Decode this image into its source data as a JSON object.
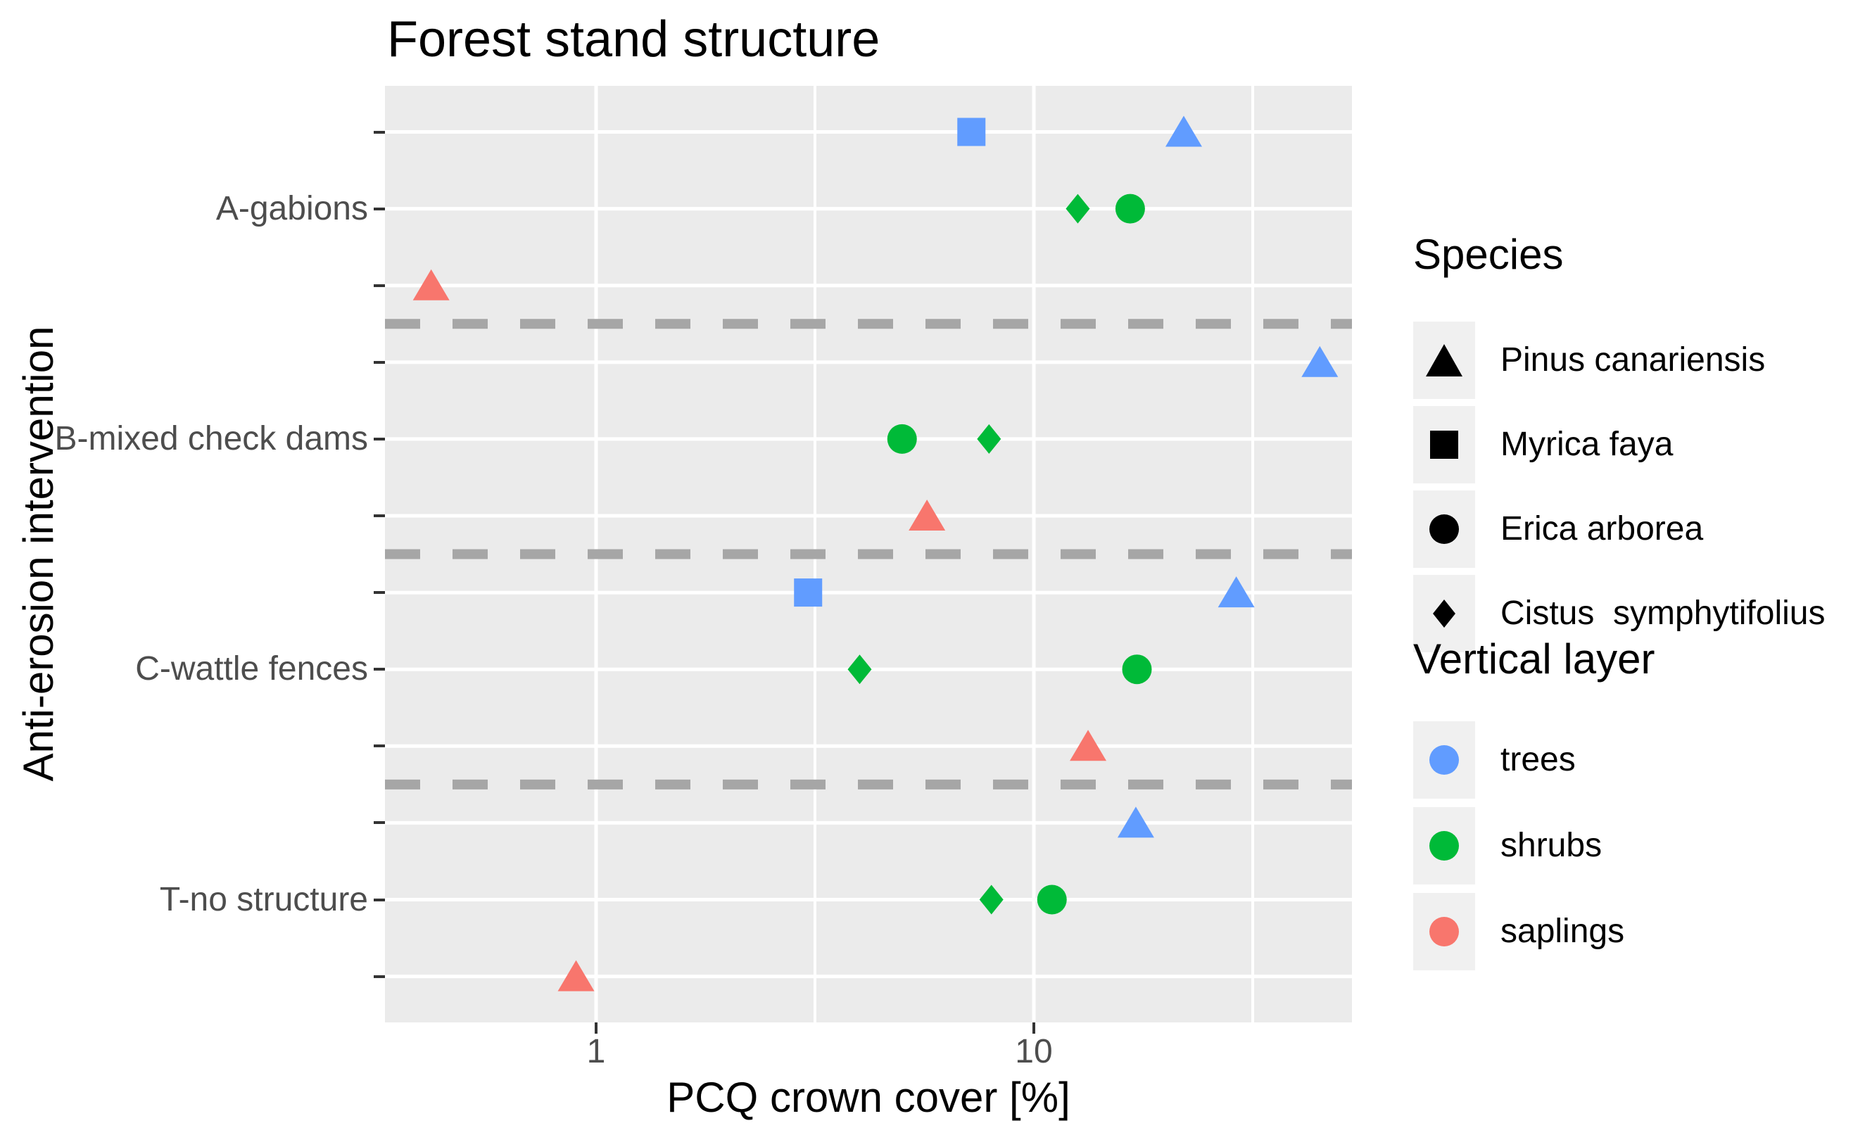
{
  "title": "Forest stand structure",
  "axes": {
    "x": {
      "label": "PCQ crown cover [%]",
      "scale": "log10",
      "ticks": [
        "1",
        "10"
      ],
      "tick_values": [
        1,
        10
      ]
    },
    "y": {
      "label": "Anti-erosion intervention",
      "ticks": [
        "A-gabions",
        "B-mixed check dams",
        "C-wattle fences",
        "T-no structure"
      ]
    }
  },
  "legend": {
    "species": {
      "title": "Species",
      "items": [
        {
          "label": "Pinus canariensis",
          "shape": "triangle"
        },
        {
          "label": "Myrica faya",
          "shape": "square"
        },
        {
          "label": "Erica arborea",
          "shape": "circle"
        },
        {
          "label": "Cistus  symphytifolius",
          "shape": "diamond"
        }
      ]
    },
    "vertical_layer": {
      "title": "Vertical layer",
      "items": [
        {
          "label": "trees",
          "color_key": "trees"
        },
        {
          "label": "shrubs",
          "color_key": "shrubs"
        },
        {
          "label": "saplings",
          "color_key": "saplings"
        }
      ]
    }
  },
  "colors": {
    "trees": "#619CFF",
    "shrubs": "#00BA38",
    "saplings": "#F8766D",
    "panel_background": "#EBEBEB",
    "gridline": "#FFFFFF",
    "separator_dash": "#A6A6A6",
    "tick_mark": "#333333",
    "tick_text": "#4D4D4D",
    "legend_key_background": "#F0F0F0"
  },
  "shape_by_species": {
    "Pinus canariensis": "triangle",
    "Myrica faya": "square",
    "Erica arborea": "circle",
    "Cistus symphytifolius": "diamond"
  },
  "chart_data": {
    "type": "scatter",
    "title": "Forest stand structure",
    "xlabel": "PCQ crown cover [%]",
    "ylabel": "Anti-erosion intervention",
    "x_scale": "log10",
    "x_ticks": [
      1,
      10
    ],
    "x_minor_gridlines": [
      3.1623,
      31.623
    ],
    "x_range_approx": [
      0.33,
      53
    ],
    "grid": true,
    "legend_position": "right",
    "groups": [
      {
        "intervention": "A-gabions",
        "rows": [
          {
            "layer": "trees",
            "points": [
              {
                "species": "Myrica faya",
                "value": 7.2
              },
              {
                "species": "Pinus canariensis",
                "value": 22
              }
            ]
          },
          {
            "layer": "shrubs",
            "points": [
              {
                "species": "Cistus symphytifolius",
                "value": 12.6
              },
              {
                "species": "Erica arborea",
                "value": 16.6
              }
            ]
          },
          {
            "layer": "saplings",
            "points": [
              {
                "species": "Pinus canariensis",
                "value": 0.42
              }
            ]
          }
        ]
      },
      {
        "intervention": "B-mixed check dams",
        "rows": [
          {
            "layer": "trees",
            "points": [
              {
                "species": "Pinus canariensis",
                "value": 45
              }
            ]
          },
          {
            "layer": "shrubs",
            "points": [
              {
                "species": "Erica arborea",
                "value": 5.0
              },
              {
                "species": "Cistus symphytifolius",
                "value": 7.9
              }
            ]
          },
          {
            "layer": "saplings",
            "points": [
              {
                "species": "Pinus canariensis",
                "value": 5.7
              }
            ]
          }
        ]
      },
      {
        "intervention": "C-wattle fences",
        "rows": [
          {
            "layer": "trees",
            "points": [
              {
                "species": "Myrica faya",
                "value": 3.05
              },
              {
                "species": "Pinus canariensis",
                "value": 29
              }
            ]
          },
          {
            "layer": "shrubs",
            "points": [
              {
                "species": "Cistus symphytifolius",
                "value": 4.0
              },
              {
                "species": "Erica arborea",
                "value": 17.2
              }
            ]
          },
          {
            "layer": "saplings",
            "points": [
              {
                "species": "Pinus canariensis",
                "value": 13.3
              }
            ]
          }
        ]
      },
      {
        "intervention": "T-no structure",
        "rows": [
          {
            "layer": "trees",
            "points": [
              {
                "species": "Pinus canariensis",
                "value": 17.1
              }
            ]
          },
          {
            "layer": "shrubs",
            "points": [
              {
                "species": "Cistus symphytifolius",
                "value": 8.0
              },
              {
                "species": "Erica arborea",
                "value": 11.0
              }
            ]
          },
          {
            "layer": "saplings",
            "points": [
              {
                "species": "Pinus canariensis",
                "value": 0.9
              }
            ]
          }
        ]
      }
    ]
  }
}
